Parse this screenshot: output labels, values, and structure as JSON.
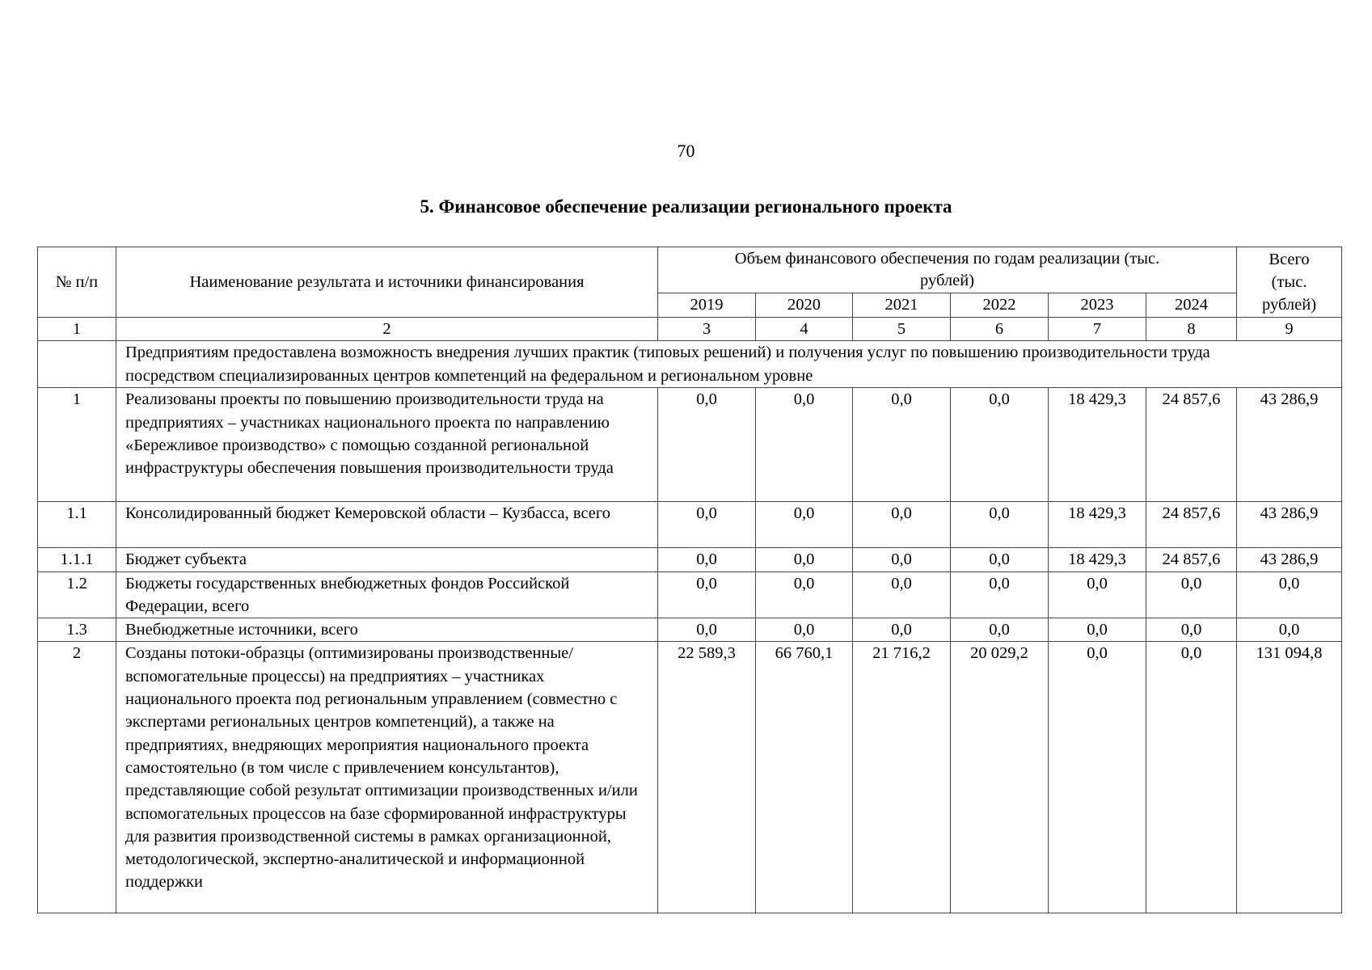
{
  "page_number": "70",
  "title": "5. Финансовое обеспечение реализации регионального проекта",
  "table": {
    "headers": {
      "num": "№ п/п",
      "name": "Наименование результата и источники финансирования",
      "volume": "Объем финансового обеспечения по годам реализации (тыс. рублей)",
      "total": "Всего (тыс. рублей)",
      "years": [
        "2019",
        "2020",
        "2021",
        "2022",
        "2023",
        "2024"
      ]
    },
    "column_numbers": [
      "1",
      "2",
      "3",
      "4",
      "5",
      "6",
      "7",
      "8",
      "9"
    ],
    "section_heading": "Предприятиям предоставлена возможность внедрения лучших практик (типовых решений) и получения услуг по повышению производительности труда посредством специализированных центров компетенций на федеральном и региональном уровне",
    "rows": [
      {
        "num": "1",
        "name": "Реализованы проекты по повышению производительности труда на предприятиях – участниках национального проекта по направлению «Бережливое производство» с помощью созданной региональной инфраструктуры обеспечения повышения производительности труда",
        "values": [
          "0,0",
          "0,0",
          "0,0",
          "0,0",
          "18 429,3",
          "24 857,6"
        ],
        "total": "43 286,9"
      },
      {
        "num": "1.1",
        "name": "Консолидированный бюджет Кемеровской области – Кузбасса, всего",
        "values": [
          "0,0",
          "0,0",
          "0,0",
          "0,0",
          "18 429,3",
          "24 857,6"
        ],
        "total": "43 286,9"
      },
      {
        "num": "1.1.1",
        "name": "Бюджет субъекта",
        "values": [
          "0,0",
          "0,0",
          "0,0",
          "0,0",
          "18 429,3",
          "24 857,6"
        ],
        "total": "43 286,9"
      },
      {
        "num": "1.2",
        "name": "Бюджеты государственных внебюджетных фондов Российской Федерации, всего",
        "values": [
          "0,0",
          "0,0",
          "0,0",
          "0,0",
          "0,0",
          "0,0"
        ],
        "total": "0,0"
      },
      {
        "num": "1.3",
        "name": "Внебюджетные источники, всего",
        "values": [
          "0,0",
          "0,0",
          "0,0",
          "0,0",
          "0,0",
          "0,0"
        ],
        "total": "0,0"
      },
      {
        "num": "2",
        "name": "Созданы потоки-образцы (оптимизированы производственные/вспомогательные процессы) на предприятиях – участниках национального проекта под региональным управлением (совместно с экспертами региональных центров компетенций), а также на предприятиях, внедряющих мероприятия национального проекта самостоятельно (в том числе с привлечением консультантов), представляющие собой результат оптимизации производственных и/или вспомогательных процессов на базе сформированной инфраструктуры для развития производственной системы в рамках организационной, методологической, экспертно-аналитической и информационной поддержки",
        "values": [
          "22 589,3",
          "66 760,1",
          "21 716,2",
          "20 029,2",
          "0,0",
          "0,0"
        ],
        "total": "131 094,8"
      }
    ]
  }
}
